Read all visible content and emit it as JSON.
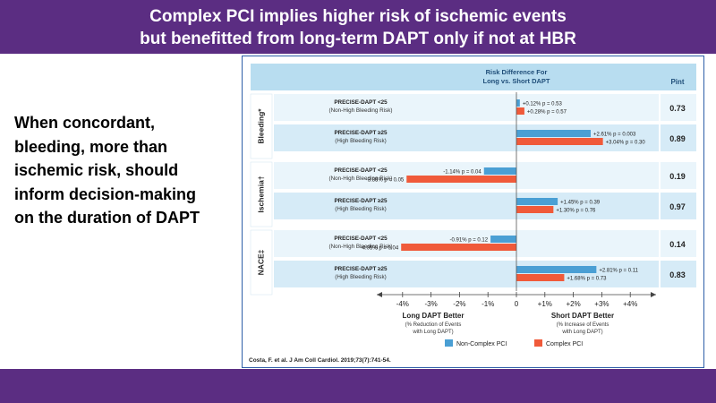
{
  "title": {
    "line1": "Complex PCI implies higher risk of ischemic events",
    "line2": "but benefitted from long-term DAPT only if not at HBR"
  },
  "side_text": {
    "lines": [
      "When concordant,",
      "bleeding, more than",
      "ischemic risk, should",
      "inform decision-making",
      "on the duration of DAPT"
    ]
  },
  "citation": "Costa, F. et al. J Am Coll Cardiol. 2019;73(7):741-54.",
  "colors": {
    "non_complex": "#4a9fd4",
    "complex": "#f05a3a",
    "header": "#b8ddf0",
    "band": "#d6ebf7",
    "band_light": "#eaf5fb",
    "banner": "#5b2d82"
  },
  "chart_data": {
    "type": "bar",
    "orientation": "horizontal",
    "header": {
      "line1": "Risk Difference For",
      "line2": "Long vs. Short DAPT",
      "pint_label": "Pint"
    },
    "groups": [
      {
        "name": "Bleeding*",
        "rows": [
          {
            "line1": "PRECISE-DAPT <25",
            "line2": "(Non-High Bleeding Risk)",
            "non_complex": 0.12,
            "complex": 0.28,
            "label_non_complex": "+0.12% p = 0.53",
            "label_complex": "+0.28% p = 0.57",
            "pint": "0.73"
          },
          {
            "line1": "PRECISE-DAPT ≥25",
            "line2": "(High Bleeding Risk)",
            "non_complex": 2.61,
            "complex": 3.04,
            "label_non_complex": "+2.61% p = 0.003",
            "label_complex": "+3.04% p = 0.30",
            "pint": "0.89"
          }
        ]
      },
      {
        "name": "Ischemia†",
        "rows": [
          {
            "line1": "PRECISE-DAPT <25",
            "line2": "(Non-High Bleeding Risk)",
            "non_complex": -1.14,
            "complex": -3.86,
            "label_non_complex": "-1.14% p = 0.04",
            "label_complex": "-3.86% p = 0.05",
            "pint": "0.19"
          },
          {
            "line1": "PRECISE-DAPT ≥25",
            "line2": "(High Bleeding Risk)",
            "non_complex": 1.45,
            "complex": 1.3,
            "label_non_complex": "+1.45% p = 0.39",
            "label_complex": "+1.30% p = 0.76",
            "pint": "0.97"
          }
        ]
      },
      {
        "name": "NACE‡",
        "rows": [
          {
            "line1": "PRECISE-DAPT <25",
            "line2": "(Non-High Bleeding Risk)",
            "non_complex": -0.91,
            "complex": -4.05,
            "label_non_complex": "-0.91% p = 0.12",
            "label_complex": "-4.05% p = 0.04",
            "pint": "0.14"
          },
          {
            "line1": "PRECISE-DAPT ≥25",
            "line2": "(High Bleeding Risk)",
            "non_complex": 2.81,
            "complex": 1.68,
            "label_non_complex": "+2.81% p = 0.11",
            "label_complex": "+1.68% p = 0.73",
            "pint": "0.83"
          }
        ]
      }
    ],
    "x_ticks": [
      "-4%",
      "-3%",
      "-2%",
      "-1%",
      "0",
      "+1%",
      "+2%",
      "+3%",
      "+4%"
    ],
    "xlim": [
      -4.5,
      4.5
    ],
    "left_label": {
      "title": "Long DAPT Better",
      "line1": "(% Reduction of Events",
      "line2": "with Long DAPT)"
    },
    "right_label": {
      "title": "Short DAPT Better",
      "line1": "(% Increase of Events",
      "line2": "with Long DAPT)"
    },
    "legend": [
      {
        "name": "Non-Complex PCI",
        "key": "non_complex"
      },
      {
        "name": "Complex PCI",
        "key": "complex"
      }
    ]
  }
}
